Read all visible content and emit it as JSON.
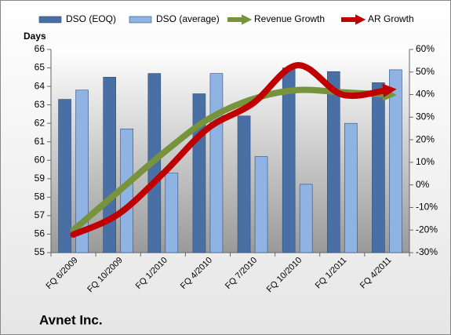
{
  "chart_data": {
    "type": "bar-line-combo",
    "title": "Avnet Inc.",
    "y_label": "Days",
    "categories": [
      "FQ 6/2009",
      "FQ 10/2009",
      "FQ 1/2010",
      "FQ 4/2010",
      "FQ 7/2010",
      "FQ 10/2010",
      "FQ 1/2011",
      "FQ 4/2011"
    ],
    "series": [
      {
        "name": "DSO (EOQ)",
        "type": "bar",
        "color": "#4a6fa5",
        "values": [
          63.3,
          64.5,
          64.7,
          63.6,
          62.4,
          65.0,
          64.8,
          64.2
        ]
      },
      {
        "name": "DSO (average)",
        "type": "bar",
        "color": "#8fb4e3",
        "values": [
          63.8,
          61.7,
          59.3,
          64.7,
          60.2,
          58.7,
          62.0,
          64.9
        ]
      },
      {
        "name": "Revenue Growth",
        "type": "line",
        "axis": "y2",
        "color": "#77933c",
        "values": [
          -20,
          -3,
          14,
          29,
          38,
          42,
          41,
          40
        ]
      },
      {
        "name": "AR Growth",
        "type": "line",
        "axis": "y2",
        "color": "#c00000",
        "values": [
          -22,
          -13,
          5,
          25,
          36,
          53,
          40,
          42
        ]
      }
    ],
    "ylim": [
      55,
      66
    ],
    "yticks": [
      55,
      56,
      57,
      58,
      59,
      60,
      61,
      62,
      63,
      64,
      65,
      66
    ],
    "y2lim": [
      -30,
      60
    ],
    "y2ticks": [
      {
        "value": -30,
        "label": "-30%"
      },
      {
        "value": -20,
        "label": "-20%"
      },
      {
        "value": -10,
        "label": "-10%"
      },
      {
        "value": 0,
        "label": "0%"
      },
      {
        "value": 10,
        "label": "10%"
      },
      {
        "value": 20,
        "label": "20%"
      },
      {
        "value": 30,
        "label": "30%"
      },
      {
        "value": 40,
        "label": "40%"
      },
      {
        "value": 50,
        "label": "50%"
      },
      {
        "value": 60,
        "label": "60%"
      }
    ],
    "grid": false
  }
}
